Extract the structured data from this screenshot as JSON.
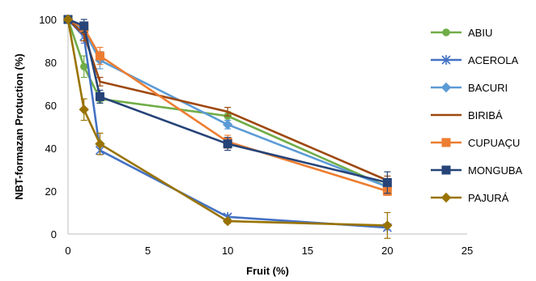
{
  "chart_data": {
    "type": "line",
    "xlabel": "Fruit (%)",
    "ylabel": "NBT-formazan Protuction (%)",
    "xlim": [
      0,
      25
    ],
    "ylim": [
      0,
      100
    ],
    "xticks": [
      0,
      5,
      10,
      15,
      20,
      25
    ],
    "yticks": [
      0,
      20,
      40,
      60,
      80,
      100
    ],
    "x": [
      0,
      1,
      2,
      10,
      20
    ],
    "grid": false,
    "legend_position": "right",
    "series": [
      {
        "name": "ABIU",
        "color": "#70ad47",
        "marker": "circle",
        "values": [
          100,
          78,
          63,
          55,
          22
        ],
        "errors": [
          0,
          5,
          2,
          2,
          2
        ]
      },
      {
        "name": "ACEROLA",
        "color": "#4472c4",
        "marker": "star",
        "values": [
          100,
          92,
          39,
          8,
          3
        ],
        "errors": [
          0,
          3,
          2,
          1,
          1
        ]
      },
      {
        "name": "BACURI",
        "color": "#5b9bd5",
        "marker": "diamond",
        "values": [
          100,
          95,
          81,
          51,
          22
        ],
        "errors": [
          0,
          3,
          4,
          2,
          2
        ]
      },
      {
        "name": "BIRIBÁ",
        "color": "#9e480e",
        "marker": "none",
        "values": [
          100,
          93,
          71,
          57,
          25
        ],
        "errors": [
          0,
          3,
          2,
          2,
          2
        ]
      },
      {
        "name": "CUPUAÇU",
        "color": "#ed7d31",
        "marker": "square",
        "values": [
          100,
          96,
          83,
          43,
          20
        ],
        "errors": [
          0,
          2,
          4,
          3,
          2
        ]
      },
      {
        "name": "MONGUBA",
        "color": "#264478",
        "marker": "square",
        "values": [
          100,
          97,
          64,
          42,
          24
        ],
        "errors": [
          0,
          3,
          3,
          3,
          5
        ]
      },
      {
        "name": "PAJURÁ",
        "color": "#997300",
        "marker": "diamond",
        "values": [
          100,
          58,
          42,
          6,
          4
        ],
        "errors": [
          0,
          5,
          5,
          1,
          6
        ]
      }
    ]
  }
}
